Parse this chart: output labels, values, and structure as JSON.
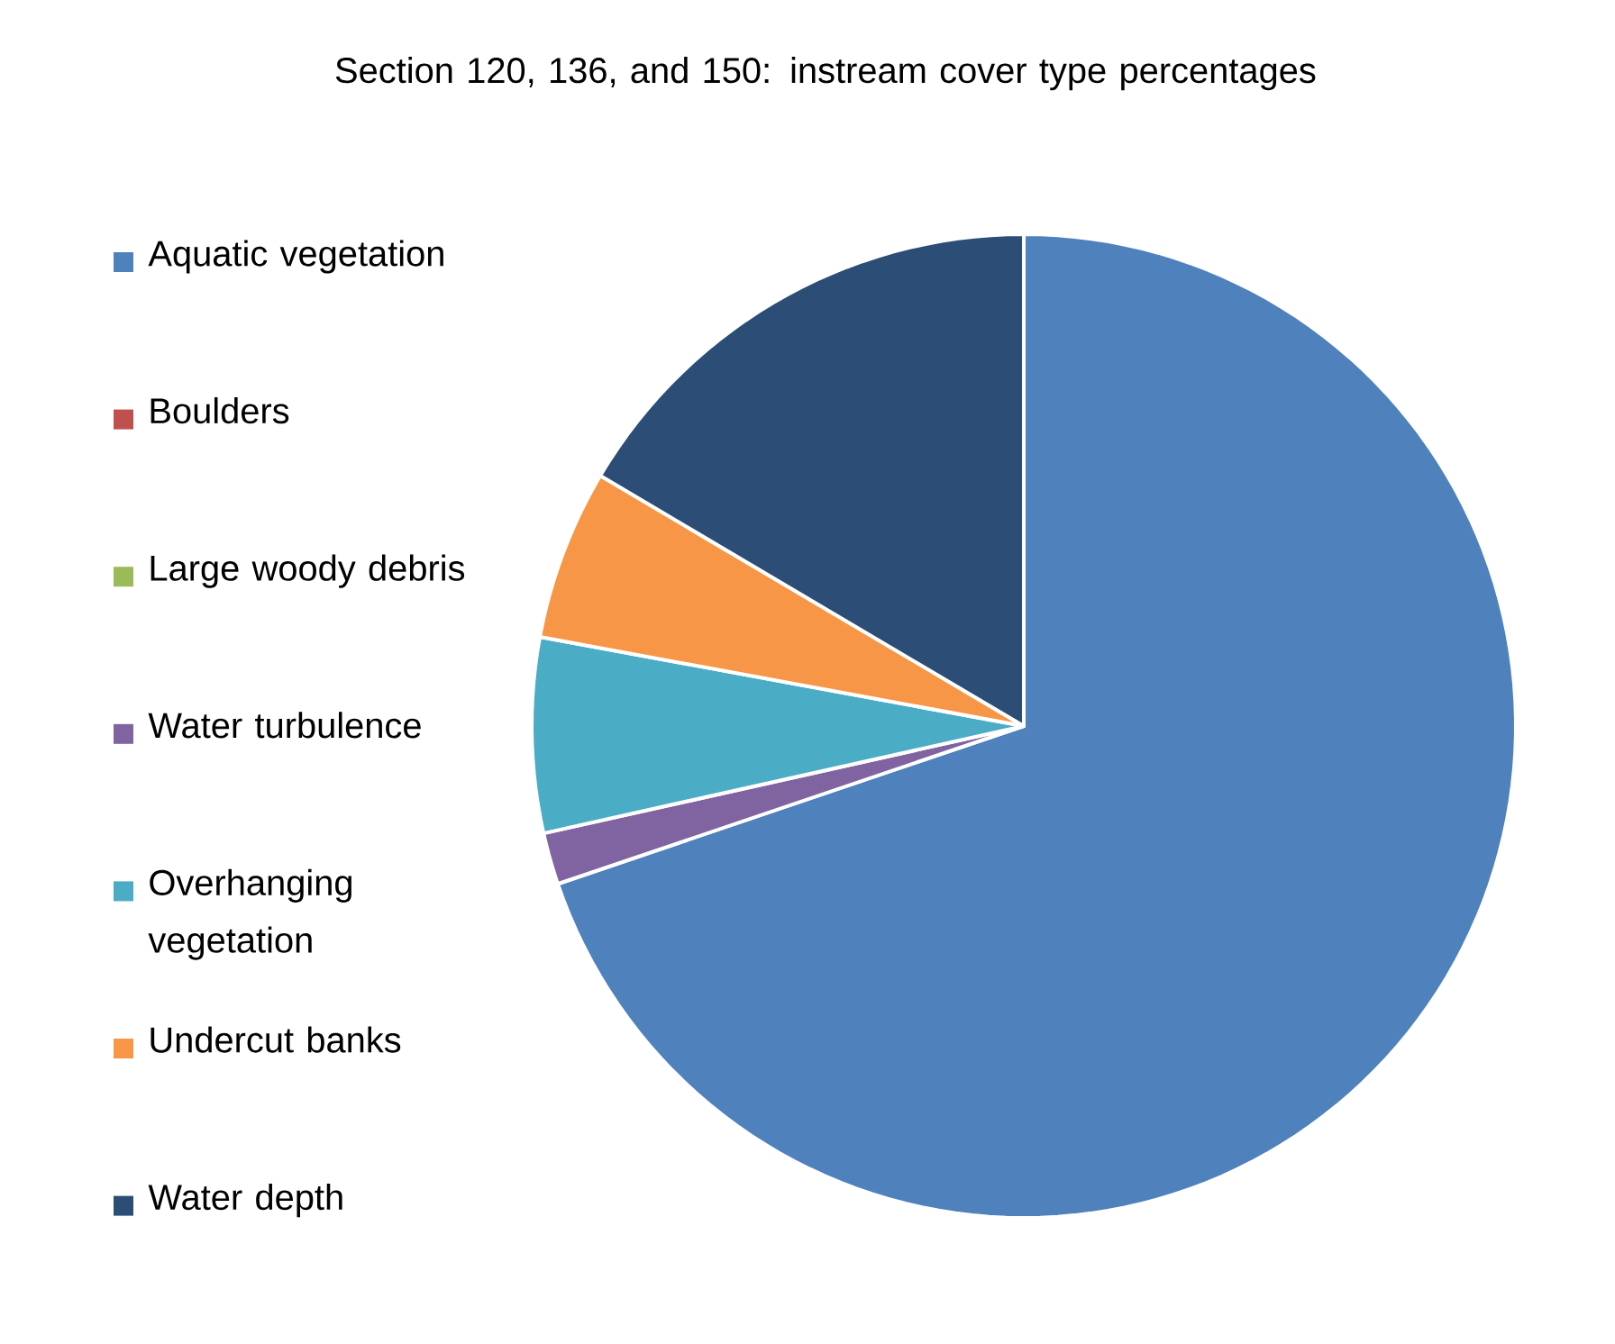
{
  "chart_data": {
    "type": "pie",
    "title": "Section 120, 136, and 150: instream cover type percentages",
    "categories": [
      "Aquatic vegetation",
      "Boulders",
      "Large woody debris",
      "Water turbulence",
      "Overhanging vegetation",
      "Undercut banks",
      "Water depth"
    ],
    "values": [
      69.8,
      0,
      0,
      1.7,
      6.4,
      5.6,
      16.5
    ],
    "colors": [
      "#4f81bd",
      "#c0504d",
      "#9bbb59",
      "#8064a2",
      "#4bacc6",
      "#f79646",
      "#2c4d75"
    ],
    "legend": "left"
  }
}
